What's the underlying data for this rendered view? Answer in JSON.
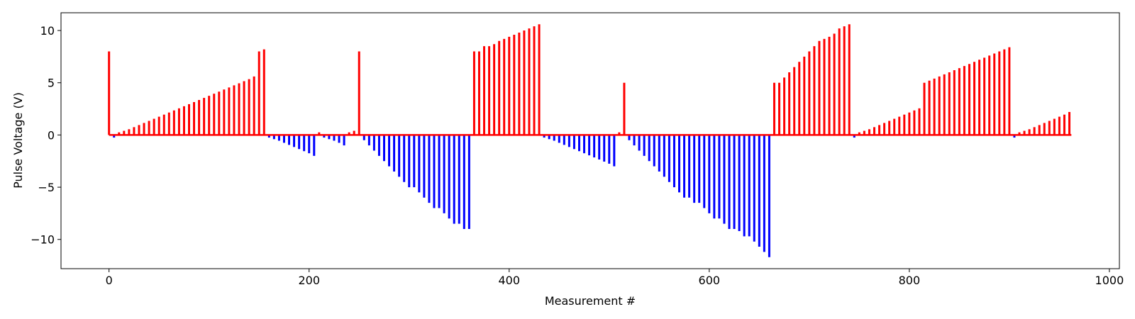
{
  "chart_data": {
    "type": "bar",
    "title": "",
    "xlabel": "Measurement #",
    "ylabel": "Pulse Voltage (V)",
    "xlim": [
      -48,
      1010
    ],
    "ylim": [
      -12.8,
      11.7
    ],
    "xticks": [
      0,
      200,
      400,
      600,
      800,
      1000
    ],
    "yticks": [
      -10,
      -5,
      0,
      5,
      10
    ],
    "grid": false,
    "legend": "none",
    "colors": {
      "positive": "#ff0000",
      "negative": "#0000ff",
      "axis": "#000000"
    },
    "baseline_x_range": [
      0,
      962
    ],
    "pulses": [
      {
        "x": 0,
        "v": 8.0
      },
      {
        "x": 5,
        "v": -0.25
      },
      {
        "x": 10,
        "v": 0.25
      },
      {
        "x": 15,
        "v": 0.4
      },
      {
        "x": 20,
        "v": 0.55
      },
      {
        "x": 25,
        "v": 0.75
      },
      {
        "x": 30,
        "v": 0.95
      },
      {
        "x": 35,
        "v": 1.15
      },
      {
        "x": 40,
        "v": 1.35
      },
      {
        "x": 45,
        "v": 1.55
      },
      {
        "x": 50,
        "v": 1.75
      },
      {
        "x": 55,
        "v": 1.95
      },
      {
        "x": 60,
        "v": 2.15
      },
      {
        "x": 65,
        "v": 2.35
      },
      {
        "x": 70,
        "v": 2.55
      },
      {
        "x": 75,
        "v": 2.75
      },
      {
        "x": 80,
        "v": 2.95
      },
      {
        "x": 85,
        "v": 3.15
      },
      {
        "x": 90,
        "v": 3.35
      },
      {
        "x": 95,
        "v": 3.55
      },
      {
        "x": 100,
        "v": 3.75
      },
      {
        "x": 105,
        "v": 3.95
      },
      {
        "x": 110,
        "v": 4.15
      },
      {
        "x": 115,
        "v": 4.35
      },
      {
        "x": 120,
        "v": 4.55
      },
      {
        "x": 125,
        "v": 4.75
      },
      {
        "x": 130,
        "v": 4.95
      },
      {
        "x": 135,
        "v": 5.15
      },
      {
        "x": 140,
        "v": 5.35
      },
      {
        "x": 145,
        "v": 5.6
      },
      {
        "x": 150,
        "v": 8.0
      },
      {
        "x": 155,
        "v": 8.2
      },
      {
        "x": 160,
        "v": -0.25
      },
      {
        "x": 165,
        "v": -0.4
      },
      {
        "x": 170,
        "v": -0.55
      },
      {
        "x": 175,
        "v": -0.75
      },
      {
        "x": 180,
        "v": -0.95
      },
      {
        "x": 185,
        "v": -1.15
      },
      {
        "x": 190,
        "v": -1.35
      },
      {
        "x": 195,
        "v": -1.55
      },
      {
        "x": 200,
        "v": -1.75
      },
      {
        "x": 205,
        "v": -2.0
      },
      {
        "x": 210,
        "v": 0.25
      },
      {
        "x": 215,
        "v": -0.25
      },
      {
        "x": 220,
        "v": -0.4
      },
      {
        "x": 225,
        "v": -0.55
      },
      {
        "x": 230,
        "v": -0.75
      },
      {
        "x": 235,
        "v": -1.0
      },
      {
        "x": 240,
        "v": 0.25
      },
      {
        "x": 245,
        "v": 0.4
      },
      {
        "x": 250,
        "v": 8.0
      },
      {
        "x": 255,
        "v": -0.5
      },
      {
        "x": 260,
        "v": -1.0
      },
      {
        "x": 265,
        "v": -1.5
      },
      {
        "x": 270,
        "v": -2.0
      },
      {
        "x": 275,
        "v": -2.5
      },
      {
        "x": 280,
        "v": -3.0
      },
      {
        "x": 285,
        "v": -3.5
      },
      {
        "x": 290,
        "v": -4.0
      },
      {
        "x": 295,
        "v": -4.5
      },
      {
        "x": 300,
        "v": -5.0
      },
      {
        "x": 305,
        "v": -5.0
      },
      {
        "x": 310,
        "v": -5.5
      },
      {
        "x": 315,
        "v": -6.0
      },
      {
        "x": 320,
        "v": -6.5
      },
      {
        "x": 325,
        "v": -7.0
      },
      {
        "x": 330,
        "v": -7.0
      },
      {
        "x": 335,
        "v": -7.5
      },
      {
        "x": 340,
        "v": -8.0
      },
      {
        "x": 345,
        "v": -8.5
      },
      {
        "x": 350,
        "v": -8.5
      },
      {
        "x": 355,
        "v": -9.0
      },
      {
        "x": 360,
        "v": -9.0
      },
      {
        "x": 365,
        "v": 8.0
      },
      {
        "x": 370,
        "v": 8.0
      },
      {
        "x": 375,
        "v": 8.5
      },
      {
        "x": 380,
        "v": 8.5
      },
      {
        "x": 385,
        "v": 8.7
      },
      {
        "x": 390,
        "v": 9.0
      },
      {
        "x": 395,
        "v": 9.2
      },
      {
        "x": 400,
        "v": 9.4
      },
      {
        "x": 405,
        "v": 9.6
      },
      {
        "x": 410,
        "v": 9.8
      },
      {
        "x": 415,
        "v": 10.0
      },
      {
        "x": 420,
        "v": 10.2
      },
      {
        "x": 425,
        "v": 10.4
      },
      {
        "x": 430,
        "v": 10.6
      },
      {
        "x": 435,
        "v": -0.25
      },
      {
        "x": 440,
        "v": -0.4
      },
      {
        "x": 445,
        "v": -0.55
      },
      {
        "x": 450,
        "v": -0.75
      },
      {
        "x": 455,
        "v": -0.95
      },
      {
        "x": 460,
        "v": -1.15
      },
      {
        "x": 465,
        "v": -1.35
      },
      {
        "x": 470,
        "v": -1.55
      },
      {
        "x": 475,
        "v": -1.75
      },
      {
        "x": 480,
        "v": -1.95
      },
      {
        "x": 485,
        "v": -2.15
      },
      {
        "x": 490,
        "v": -2.35
      },
      {
        "x": 495,
        "v": -2.55
      },
      {
        "x": 500,
        "v": -2.75
      },
      {
        "x": 505,
        "v": -3.0
      },
      {
        "x": 510,
        "v": 0.25
      },
      {
        "x": 515,
        "v": 5.0
      },
      {
        "x": 520,
        "v": -0.5
      },
      {
        "x": 525,
        "v": -1.0
      },
      {
        "x": 530,
        "v": -1.5
      },
      {
        "x": 535,
        "v": -2.0
      },
      {
        "x": 540,
        "v": -2.5
      },
      {
        "x": 545,
        "v": -3.0
      },
      {
        "x": 550,
        "v": -3.5
      },
      {
        "x": 555,
        "v": -4.0
      },
      {
        "x": 560,
        "v": -4.5
      },
      {
        "x": 565,
        "v": -5.0
      },
      {
        "x": 570,
        "v": -5.5
      },
      {
        "x": 575,
        "v": -6.0
      },
      {
        "x": 580,
        "v": -6.0
      },
      {
        "x": 585,
        "v": -6.5
      },
      {
        "x": 590,
        "v": -6.5
      },
      {
        "x": 595,
        "v": -7.0
      },
      {
        "x": 600,
        "v": -7.5
      },
      {
        "x": 605,
        "v": -8.0
      },
      {
        "x": 610,
        "v": -8.0
      },
      {
        "x": 615,
        "v": -8.5
      },
      {
        "x": 620,
        "v": -9.0
      },
      {
        "x": 625,
        "v": -9.0
      },
      {
        "x": 630,
        "v": -9.2
      },
      {
        "x": 635,
        "v": -9.7
      },
      {
        "x": 640,
        "v": -9.7
      },
      {
        "x": 645,
        "v": -10.2
      },
      {
        "x": 650,
        "v": -10.7
      },
      {
        "x": 655,
        "v": -11.2
      },
      {
        "x": 660,
        "v": -11.7
      },
      {
        "x": 665,
        "v": 5.0
      },
      {
        "x": 670,
        "v": 5.0
      },
      {
        "x": 675,
        "v": 5.5
      },
      {
        "x": 680,
        "v": 6.0
      },
      {
        "x": 685,
        "v": 6.5
      },
      {
        "x": 690,
        "v": 7.0
      },
      {
        "x": 695,
        "v": 7.5
      },
      {
        "x": 700,
        "v": 8.0
      },
      {
        "x": 705,
        "v": 8.5
      },
      {
        "x": 710,
        "v": 9.0
      },
      {
        "x": 715,
        "v": 9.2
      },
      {
        "x": 720,
        "v": 9.4
      },
      {
        "x": 725,
        "v": 9.7
      },
      {
        "x": 730,
        "v": 10.2
      },
      {
        "x": 735,
        "v": 10.4
      },
      {
        "x": 740,
        "v": 10.6
      },
      {
        "x": 745,
        "v": -0.25
      },
      {
        "x": 750,
        "v": 0.25
      },
      {
        "x": 755,
        "v": 0.4
      },
      {
        "x": 760,
        "v": 0.55
      },
      {
        "x": 765,
        "v": 0.75
      },
      {
        "x": 770,
        "v": 0.95
      },
      {
        "x": 775,
        "v": 1.15
      },
      {
        "x": 780,
        "v": 1.35
      },
      {
        "x": 785,
        "v": 1.55
      },
      {
        "x": 790,
        "v": 1.75
      },
      {
        "x": 795,
        "v": 1.95
      },
      {
        "x": 800,
        "v": 2.15
      },
      {
        "x": 805,
        "v": 2.35
      },
      {
        "x": 810,
        "v": 2.55
      },
      {
        "x": 815,
        "v": 5.0
      },
      {
        "x": 820,
        "v": 5.2
      },
      {
        "x": 825,
        "v": 5.4
      },
      {
        "x": 830,
        "v": 5.6
      },
      {
        "x": 835,
        "v": 5.8
      },
      {
        "x": 840,
        "v": 6.0
      },
      {
        "x": 845,
        "v": 6.2
      },
      {
        "x": 850,
        "v": 6.4
      },
      {
        "x": 855,
        "v": 6.6
      },
      {
        "x": 860,
        "v": 6.8
      },
      {
        "x": 865,
        "v": 7.0
      },
      {
        "x": 870,
        "v": 7.2
      },
      {
        "x": 875,
        "v": 7.4
      },
      {
        "x": 880,
        "v": 7.6
      },
      {
        "x": 885,
        "v": 7.8
      },
      {
        "x": 890,
        "v": 8.0
      },
      {
        "x": 895,
        "v": 8.2
      },
      {
        "x": 900,
        "v": 8.4
      },
      {
        "x": 905,
        "v": -0.25
      },
      {
        "x": 910,
        "v": 0.25
      },
      {
        "x": 915,
        "v": 0.4
      },
      {
        "x": 920,
        "v": 0.55
      },
      {
        "x": 925,
        "v": 0.75
      },
      {
        "x": 930,
        "v": 0.95
      },
      {
        "x": 935,
        "v": 1.15
      },
      {
        "x": 940,
        "v": 1.35
      },
      {
        "x": 945,
        "v": 1.55
      },
      {
        "x": 950,
        "v": 1.75
      },
      {
        "x": 955,
        "v": 1.95
      },
      {
        "x": 960,
        "v": 2.2
      }
    ]
  }
}
